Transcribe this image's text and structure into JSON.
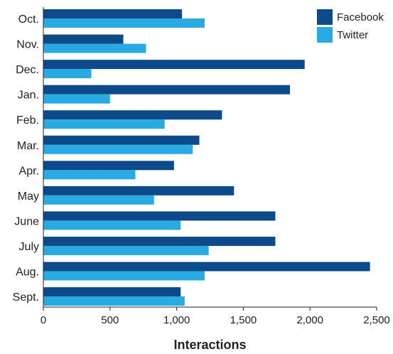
{
  "chart_data": {
    "type": "bar",
    "orientation": "horizontal",
    "xlabel": "Interactions",
    "xlim": [
      0,
      2500
    ],
    "x_ticks": [
      0,
      500,
      1000,
      1500,
      2000,
      2500
    ],
    "x_tick_labels": [
      "0",
      "500",
      "1,000",
      "1,500",
      "2,000",
      "2,500"
    ],
    "categories": [
      "Oct.",
      "Nov.",
      "Dec.",
      "Jan.",
      "Feb.",
      "Mar.",
      "Apr.",
      "May",
      "June",
      "July",
      "Aug.",
      "Sept."
    ],
    "series": [
      {
        "name": "Facebook",
        "color": "#0d4a8a",
        "values": [
          1040,
          600,
          1960,
          1850,
          1340,
          1170,
          980,
          1430,
          1740,
          1740,
          2450,
          1030
        ]
      },
      {
        "name": "Twitter",
        "color": "#29abe2",
        "values": [
          1210,
          770,
          360,
          500,
          910,
          1120,
          690,
          830,
          1030,
          1240,
          1210,
          1060
        ]
      }
    ],
    "legend_position": "top-right",
    "grid": false
  }
}
